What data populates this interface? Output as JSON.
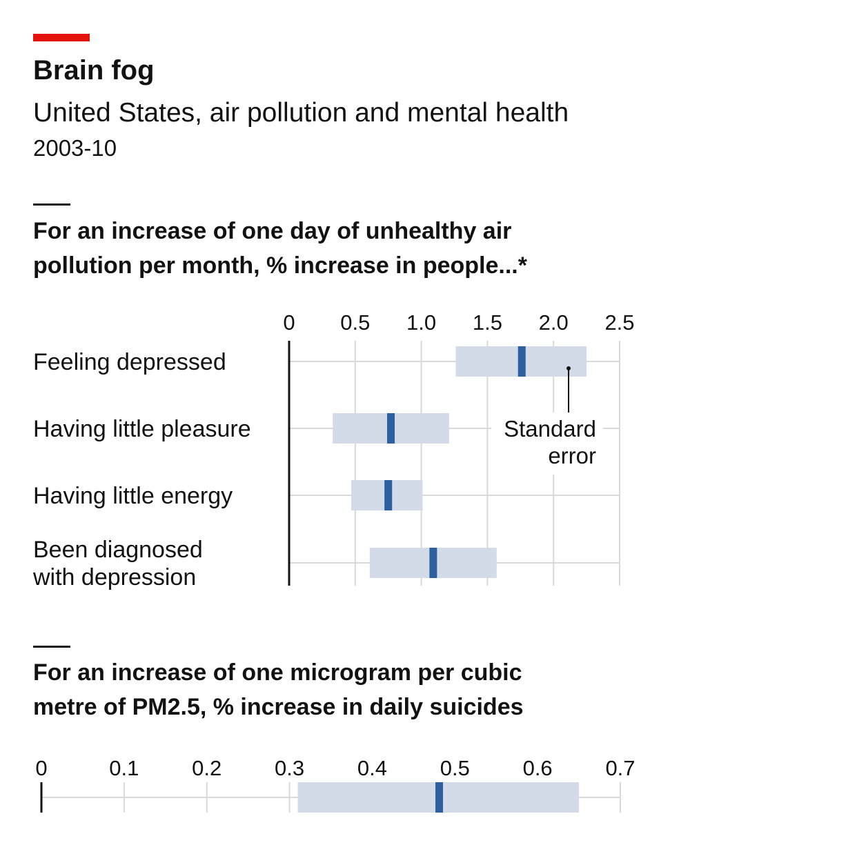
{
  "header": {
    "title": "Brain fog",
    "subtitle": "United States, air pollution and mental health",
    "period": "2003-10",
    "accent_color": "#e3120b"
  },
  "chart_data": [
    {
      "type": "bar",
      "subtype": "error-range",
      "title": "For an increase of one day of unhealthy air\npollution per month, % increase in people...*",
      "categories": [
        "Feeling depressed",
        "Having little pleasure",
        "Having little energy",
        "Been diagnosed\nwith depression"
      ],
      "values": [
        1.76,
        0.77,
        0.75,
        1.09
      ],
      "lower": [
        1.26,
        0.33,
        0.47,
        0.61
      ],
      "upper": [
        2.25,
        1.21,
        1.01,
        1.57
      ],
      "xlim": [
        0,
        2.5
      ],
      "xticks": [
        "0",
        "0.5",
        "1.0",
        "1.5",
        "2.0",
        "2.5"
      ],
      "annotation": "Standard\nerror",
      "grid": true,
      "colors": {
        "estimate": "#2e5f9e",
        "range": "#d2dbe7",
        "grid": "#d9d9d9"
      }
    },
    {
      "type": "bar",
      "subtype": "error-range",
      "title": "For an increase of one microgram per cubic\nmetre of PM2.5, % increase in daily suicides",
      "categories": [
        ""
      ],
      "values": [
        0.481
      ],
      "lower": [
        0.31
      ],
      "upper": [
        0.65
      ],
      "xlim": [
        0,
        0.7
      ],
      "xticks": [
        "0",
        "0.1",
        "0.2",
        "0.3",
        "0.4",
        "0.5",
        "0.6",
        "0.7"
      ],
      "grid": true,
      "colors": {
        "estimate": "#2e5f9e",
        "range": "#d2dbe7",
        "grid": "#d9d9d9"
      }
    }
  ]
}
